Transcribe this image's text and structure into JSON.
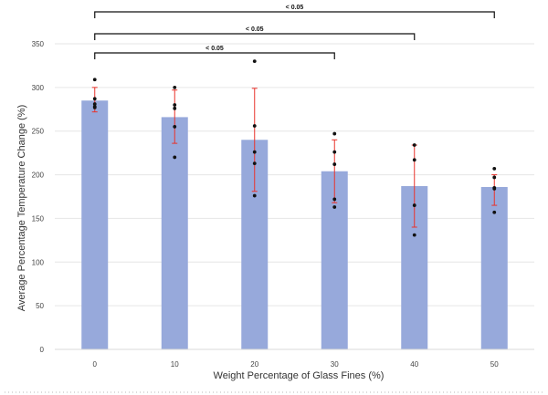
{
  "chart_data": {
    "type": "bar",
    "title": "",
    "xlabel": "Weight Percentage of Glass Fines (%)",
    "ylabel": "Average Percentage Temperature Change (%)",
    "categories": [
      "0",
      "10",
      "20",
      "30",
      "40",
      "50"
    ],
    "values": [
      285,
      266,
      240,
      204,
      187,
      186
    ],
    "error": [
      [
        272,
        300
      ],
      [
        236,
        297
      ],
      [
        181,
        299
      ],
      [
        168,
        240
      ],
      [
        140,
        234
      ],
      [
        165,
        200
      ]
    ],
    "points": [
      [
        309,
        287,
        281,
        278,
        277
      ],
      [
        300,
        280,
        276,
        255,
        220
      ],
      [
        330,
        256,
        226,
        213,
        176
      ],
      [
        247,
        226,
        212,
        172,
        163
      ],
      [
        234,
        217,
        165,
        131
      ],
      [
        207,
        197,
        185,
        184,
        157
      ]
    ],
    "ylim": [
      0,
      350
    ],
    "yticks": [
      "0",
      "50",
      "100",
      "150",
      "200",
      "250",
      "300",
      "350"
    ],
    "grid": true,
    "bar_color": "#97a9db",
    "error_color": "#e8322b",
    "point_color": "#111111",
    "significance": [
      {
        "from": "0",
        "to": "30",
        "label": "< 0.05"
      },
      {
        "from": "0",
        "to": "40",
        "label": "< 0.05"
      },
      {
        "from": "0",
        "to": "50",
        "label": "< 0.05"
      }
    ]
  }
}
